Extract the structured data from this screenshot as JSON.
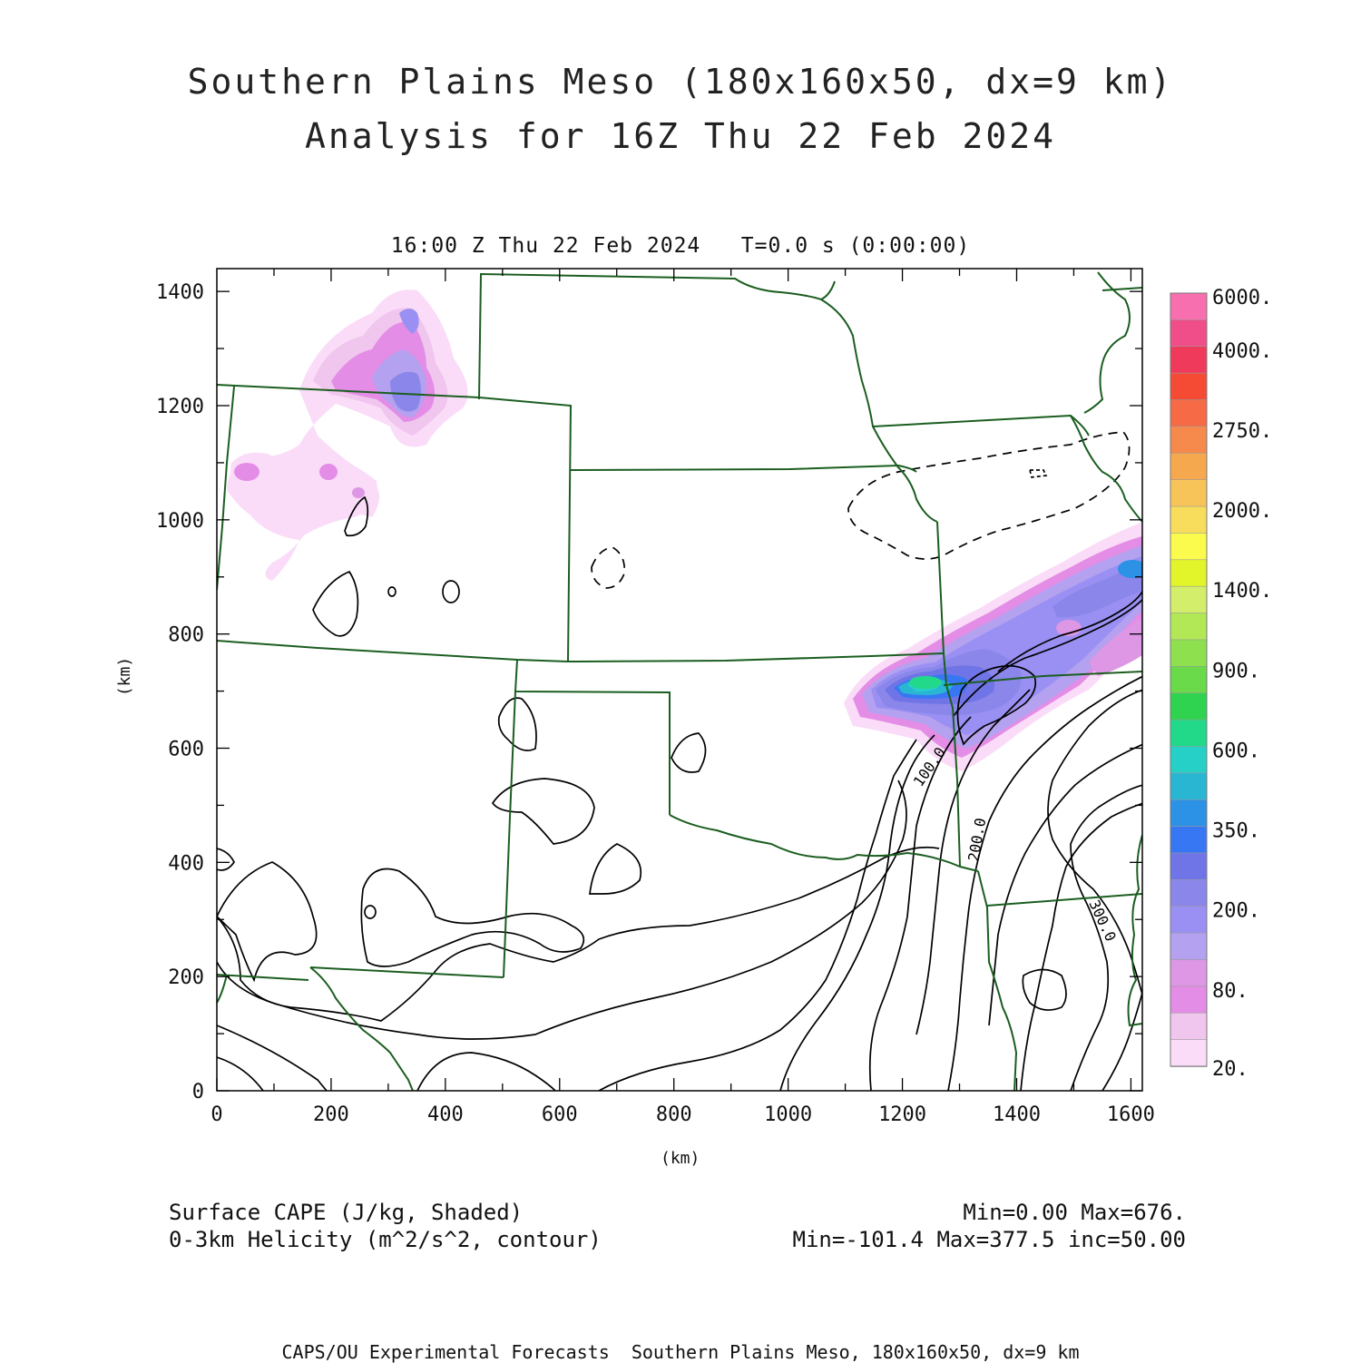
{
  "header": {
    "title_line1": "Southern Plains Meso (180x160x50, dx=9 km)",
    "title_line2": "Analysis for 16Z Thu 22 Feb 2024",
    "subtitle": "16:00 Z Thu 22 Feb 2024   T=0.0 s (0:00:00)"
  },
  "axes": {
    "xlabel": "(km)",
    "ylabel": "(km)",
    "x_ticks": [
      "0",
      "200",
      "400",
      "600",
      "800",
      "1000",
      "1200",
      "1400",
      "1600"
    ],
    "y_ticks": [
      "0",
      "200",
      "400",
      "600",
      "800",
      "1000",
      "1200",
      "1400"
    ],
    "xlim": [
      0,
      1620
    ],
    "ylim": [
      0,
      1440
    ]
  },
  "colorbar": {
    "labels": [
      "6000.",
      "4000.",
      "2750.",
      "2000.",
      "1400.",
      "900.",
      "600.",
      "350.",
      "200.",
      "80.",
      "20."
    ],
    "colors": [
      "#f86fb0",
      "#f04e88",
      "#ef3a5c",
      "#f54a33",
      "#f66a45",
      "#f58a4c",
      "#f6a84e",
      "#f7c45a",
      "#f8dd5c",
      "#fbfb4e",
      "#e2f52a",
      "#d3ee6a",
      "#b2e856",
      "#8ee04f",
      "#6ad94a",
      "#2fd34f",
      "#22d889",
      "#27d0c7",
      "#29b6d3",
      "#2b92e6",
      "#3877f3",
      "#6f74e6",
      "#8b86ea",
      "#9a90f3",
      "#b4a1ef",
      "#dd97e4",
      "#e48de6",
      "#f0c6ee",
      "#fadcf8"
    ]
  },
  "legend": {
    "line1": "Surface CAPE (J/kg, Shaded)",
    "line2": "0-3km Helicity (m^2/s^2, contour)",
    "stats1": "Min=0.00 Max=676.",
    "stats2": "Min=-101.4 Max=377.5 inc=50.00"
  },
  "contour_labels": [
    "100.0",
    "200.0",
    "300.0"
  ],
  "footer": "CAPS/OU Experimental Forecasts  Southern Plains Meso, 180x160x50, dx=9 km"
}
